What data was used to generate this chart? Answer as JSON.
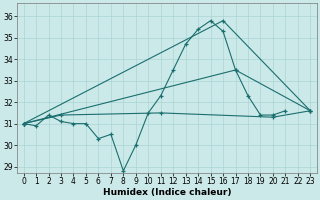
{
  "xlabel": "Humidex (Indice chaleur)",
  "background_color": "#cce9e9",
  "grid_color": "#aad4d4",
  "line_color": "#1a6e6e",
  "xlim": [
    -0.5,
    23.5
  ],
  "ylim": [
    28.7,
    36.6
  ],
  "yticks": [
    29,
    30,
    31,
    32,
    33,
    34,
    35,
    36
  ],
  "xticks": [
    0,
    1,
    2,
    3,
    4,
    5,
    6,
    7,
    8,
    9,
    10,
    11,
    12,
    13,
    14,
    15,
    16,
    17,
    18,
    19,
    20,
    21,
    22,
    23
  ],
  "series1_x": [
    0,
    1,
    2,
    3,
    4,
    5,
    6,
    7,
    8,
    9,
    10,
    11,
    12,
    13,
    14,
    15,
    16,
    17,
    18,
    19,
    20,
    21
  ],
  "series1_y": [
    31.0,
    30.9,
    31.4,
    31.1,
    31.0,
    31.0,
    30.3,
    30.5,
    28.8,
    30.0,
    31.5,
    32.3,
    33.5,
    34.7,
    35.4,
    35.8,
    35.3,
    33.5,
    32.3,
    31.4,
    31.4,
    31.6
  ],
  "series2_x": [
    0,
    3,
    11,
    20,
    23
  ],
  "series2_y": [
    31.0,
    31.4,
    31.5,
    31.3,
    31.6
  ],
  "series3_x": [
    0,
    17,
    23
  ],
  "series3_y": [
    31.0,
    33.5,
    31.6
  ],
  "series4_x": [
    0,
    16,
    23
  ],
  "series4_y": [
    31.0,
    35.8,
    31.6
  ]
}
